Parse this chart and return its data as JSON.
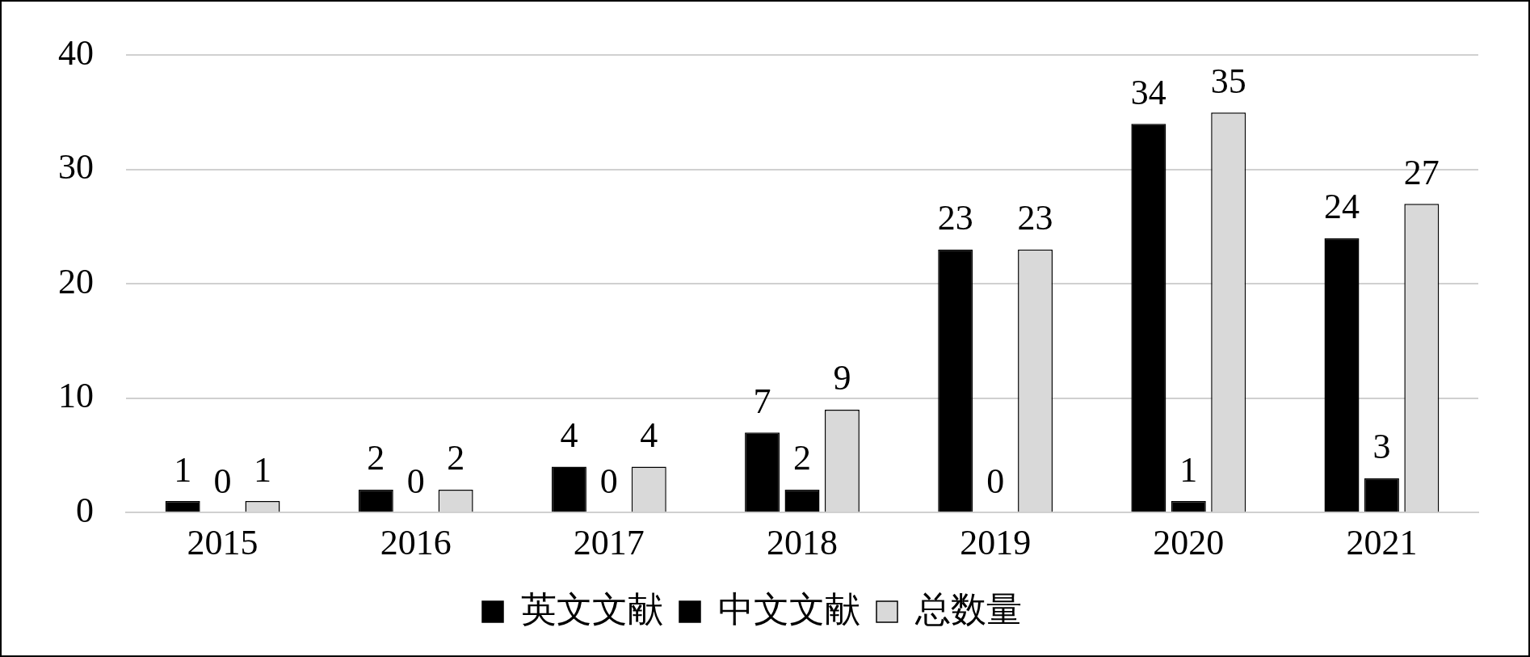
{
  "chart_data": {
    "type": "bar",
    "categories": [
      "2015",
      "2016",
      "2017",
      "2018",
      "2019",
      "2020",
      "2021"
    ],
    "series": [
      {
        "name": "英文文献",
        "color": "#000000",
        "values": [
          1,
          2,
          4,
          7,
          23,
          34,
          24
        ]
      },
      {
        "name": "中文文献",
        "color": "#000000",
        "values": [
          0,
          0,
          0,
          2,
          0,
          1,
          3
        ]
      },
      {
        "name": "总数量",
        "color": "#d9d9d9",
        "values": [
          1,
          2,
          4,
          9,
          23,
          35,
          27
        ]
      }
    ],
    "ylim": [
      0,
      40
    ],
    "yticks": [
      0,
      10,
      20,
      30,
      40
    ],
    "grid": "y",
    "legend": "bottom",
    "data_labels": true
  }
}
